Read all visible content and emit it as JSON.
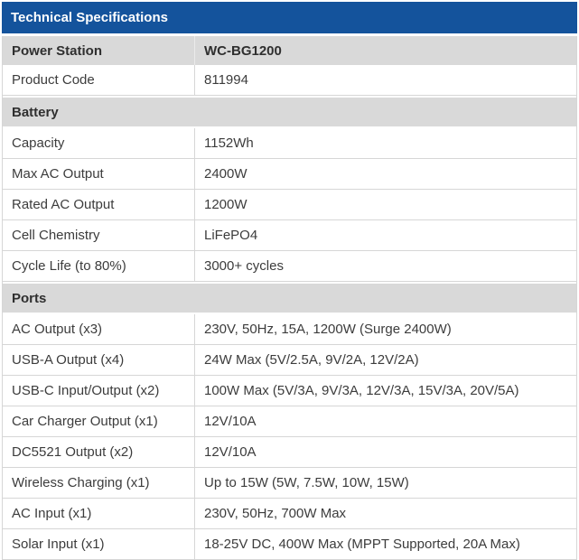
{
  "title": "Technical Specifications",
  "colors": {
    "header_bg": "#14539C",
    "header_text": "#FFFFFF",
    "section_bg": "#D9D9D9",
    "border": "#D6D6D6",
    "text": "#3C3C3C"
  },
  "table": {
    "rows": [
      {
        "type": "pair-header",
        "label": "Power Station",
        "value": "WC-BG1200"
      },
      {
        "type": "data",
        "label": "Product Code",
        "value": "811994"
      },
      {
        "type": "section-header",
        "label": "Battery"
      },
      {
        "type": "data",
        "label": "Capacity",
        "value": "1152Wh"
      },
      {
        "type": "data",
        "label": "Max AC Output",
        "value": "2400W"
      },
      {
        "type": "data",
        "label": "Rated AC Output",
        "value": "1200W"
      },
      {
        "type": "data",
        "label": "Cell Chemistry",
        "value": "LiFePO4"
      },
      {
        "type": "data",
        "label": "Cycle Life (to 80%)",
        "value": "3000+ cycles"
      },
      {
        "type": "section-header",
        "label": "Ports"
      },
      {
        "type": "data",
        "label": "AC Output (x3)",
        "value": "230V, 50Hz, 15A, 1200W (Surge 2400W)"
      },
      {
        "type": "data",
        "label": "USB-A Output (x4)",
        "value": "24W Max (5V/2.5A, 9V/2A, 12V/2A)"
      },
      {
        "type": "data",
        "label": "USB-C Input/Output (x2)",
        "value": "100W Max (5V/3A, 9V/3A, 12V/3A, 15V/3A, 20V/5A)"
      },
      {
        "type": "data",
        "label": "Car Charger Output (x1)",
        "value": "12V/10A"
      },
      {
        "type": "data",
        "label": "DC5521 Output (x2)",
        "value": "12V/10A"
      },
      {
        "type": "data",
        "label": "Wireless Charging (x1)",
        "value": "Up to 15W (5W, 7.5W, 10W, 15W)"
      },
      {
        "type": "data",
        "label": "AC Input (x1)",
        "value": "230V, 50Hz, 700W Max"
      },
      {
        "type": "data",
        "label": "Solar Input (x1)",
        "value": "18-25V DC, 400W Max (MPPT Supported, 20A Max)"
      }
    ]
  }
}
